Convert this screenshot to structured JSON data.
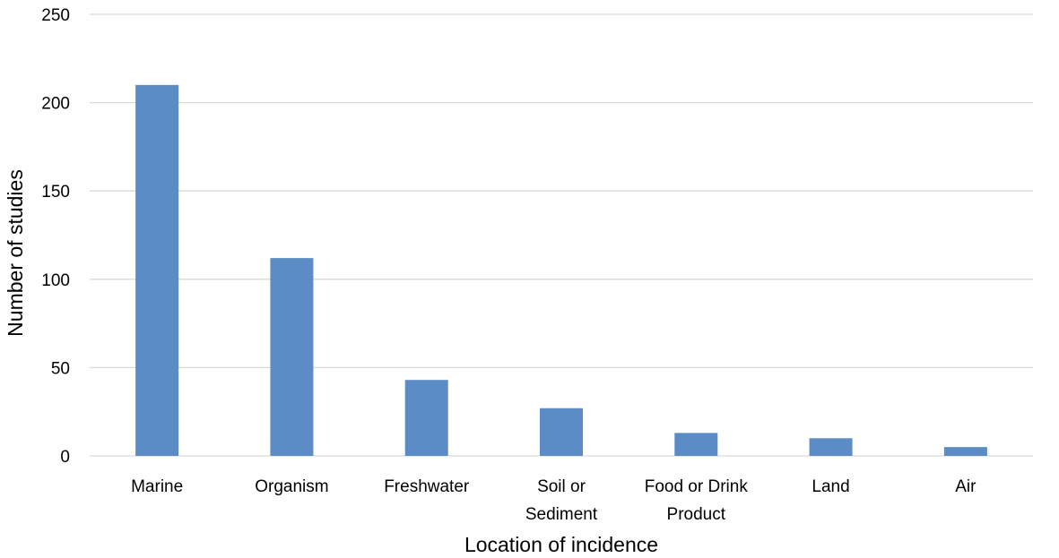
{
  "chart_data": {
    "type": "bar",
    "categories": [
      [
        "Marine"
      ],
      [
        "Organism"
      ],
      [
        "Freshwater"
      ],
      [
        "Soil or",
        "Sediment"
      ],
      [
        "Food or Drink",
        "Product"
      ],
      [
        "Land"
      ],
      [
        "Air"
      ]
    ],
    "values": [
      210,
      112,
      43,
      27,
      13,
      10,
      5
    ],
    "xlabel": "Location of incidence",
    "ylabel": "Number of studies",
    "ylim": [
      0,
      250
    ],
    "yticks": [
      0,
      50,
      100,
      150,
      200,
      250
    ],
    "grid": true,
    "legend": "none",
    "bar_color": "#5b8cc5",
    "grid_color": "#d9d9d9"
  }
}
